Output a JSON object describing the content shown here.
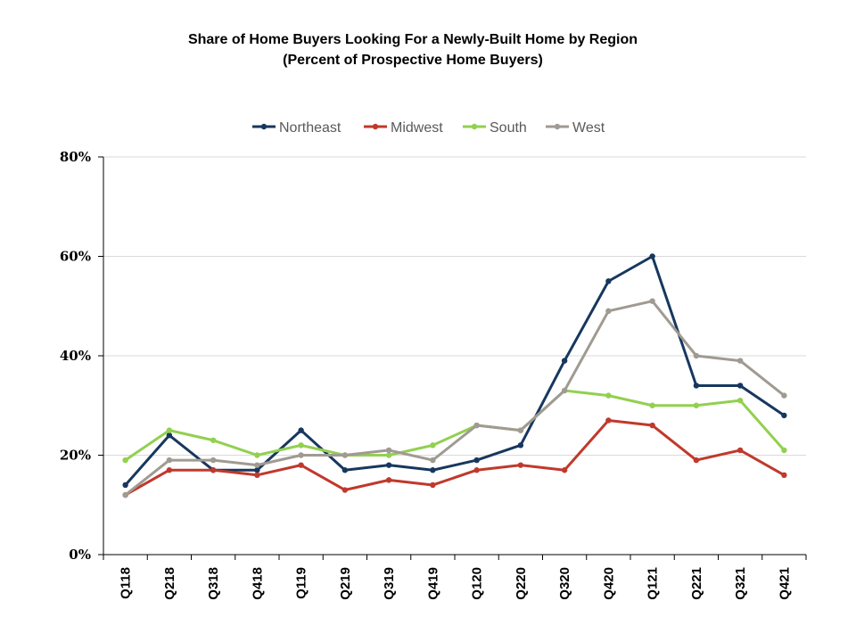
{
  "chart_data": {
    "type": "line",
    "title": "Share of Home Buyers Looking For a Newly-Built Home by Region",
    "subtitle": "(Percent of Prospective Home Buyers)",
    "categories": [
      "Q118",
      "Q218",
      "Q318",
      "Q418",
      "Q119",
      "Q219",
      "Q319",
      "Q419",
      "Q120",
      "Q220",
      "Q320",
      "Q420",
      "Q121",
      "Q221",
      "Q321",
      "Q421"
    ],
    "ylim": [
      0,
      80
    ],
    "yticks": [
      "0%",
      "20%",
      "40%",
      "60%",
      "80%"
    ],
    "grid": true,
    "legend_position": "top",
    "series": [
      {
        "name": "Northeast",
        "color": "#17375e",
        "values": [
          14,
          24,
          17,
          17,
          25,
          17,
          18,
          17,
          19,
          22,
          39,
          55,
          60,
          34,
          34,
          28
        ]
      },
      {
        "name": "Midwest",
        "color": "#c0392b",
        "values": [
          12,
          17,
          17,
          16,
          18,
          13,
          15,
          14,
          17,
          18,
          17,
          27,
          26,
          19,
          21,
          16
        ]
      },
      {
        "name": "South",
        "color": "#92d050",
        "values": [
          19,
          25,
          23,
          20,
          22,
          20,
          20,
          22,
          26,
          25,
          33,
          32,
          30,
          30,
          31,
          21
        ]
      },
      {
        "name": "West",
        "color": "#a09a92",
        "values": [
          12,
          19,
          19,
          18,
          20,
          20,
          21,
          19,
          26,
          25,
          33,
          49,
          51,
          40,
          39,
          32
        ]
      }
    ]
  }
}
